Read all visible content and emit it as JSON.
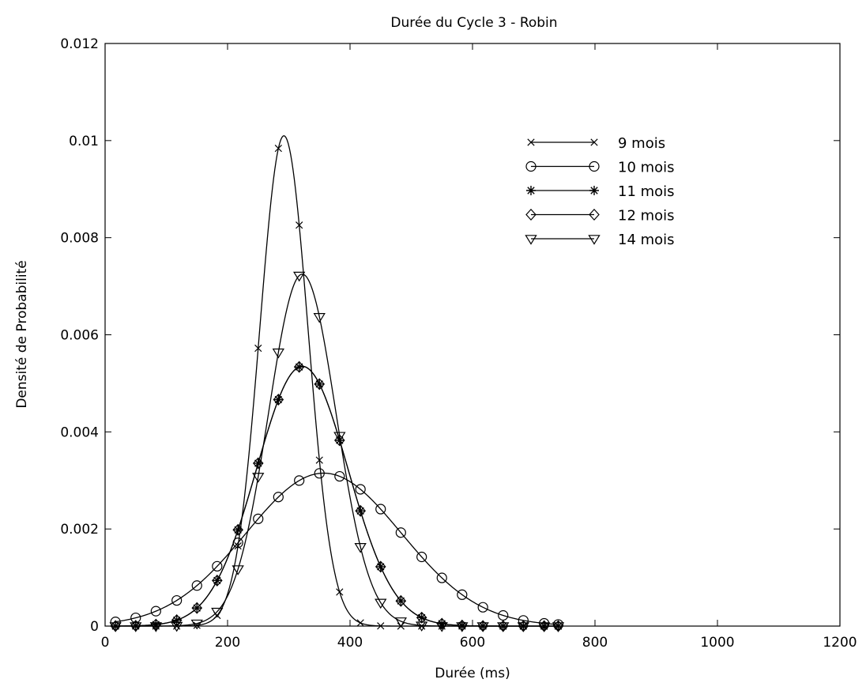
{
  "chart_data": {
    "type": "line",
    "title": "Durée du Cycle 3 - Robin",
    "xlabel": "Durée (ms)",
    "ylabel": "Densité de Probabilité",
    "xlim": [
      0,
      1200
    ],
    "ylim": [
      0,
      0.012
    ],
    "xticks": [
      0,
      200,
      400,
      600,
      800,
      1000,
      1200
    ],
    "xtick_labels": [
      "0",
      "200",
      "400",
      "600",
      "800",
      "1000",
      "1200"
    ],
    "yticks": [
      0,
      0.002,
      0.004,
      0.006,
      0.008,
      0.01,
      0.012
    ],
    "ytick_labels": [
      "0",
      "0.002",
      "0.004",
      "0.006",
      "0.008",
      "0.01",
      "0.012"
    ],
    "grid": false,
    "legend_position": "top-right",
    "line_color": "#000000",
    "series": [
      {
        "name": "9 mois",
        "marker": "x",
        "mean": 292,
        "sd": 39.4,
        "peak": 0.0101
      },
      {
        "name": "10 mois",
        "marker": "o",
        "mean": 357,
        "sd": 127,
        "peak": 0.00315
      },
      {
        "name": "11 mois",
        "marker": "*",
        "mean": 322,
        "sd": 74.5,
        "peak": 0.00535
      },
      {
        "name": "12 mois",
        "marker": "diamond",
        "mean": 322,
        "sd": 74.5,
        "peak": 0.00535
      },
      {
        "name": "14 mois",
        "marker": "triangle-down",
        "mean": 322,
        "sd": 55,
        "peak": 0.00725
      }
    ],
    "marker_x": [
      17,
      50,
      83,
      117,
      150,
      183,
      217,
      250,
      283,
      317,
      350,
      383,
      417,
      450,
      483,
      517,
      550,
      583,
      617,
      650,
      683,
      717,
      740
    ]
  }
}
